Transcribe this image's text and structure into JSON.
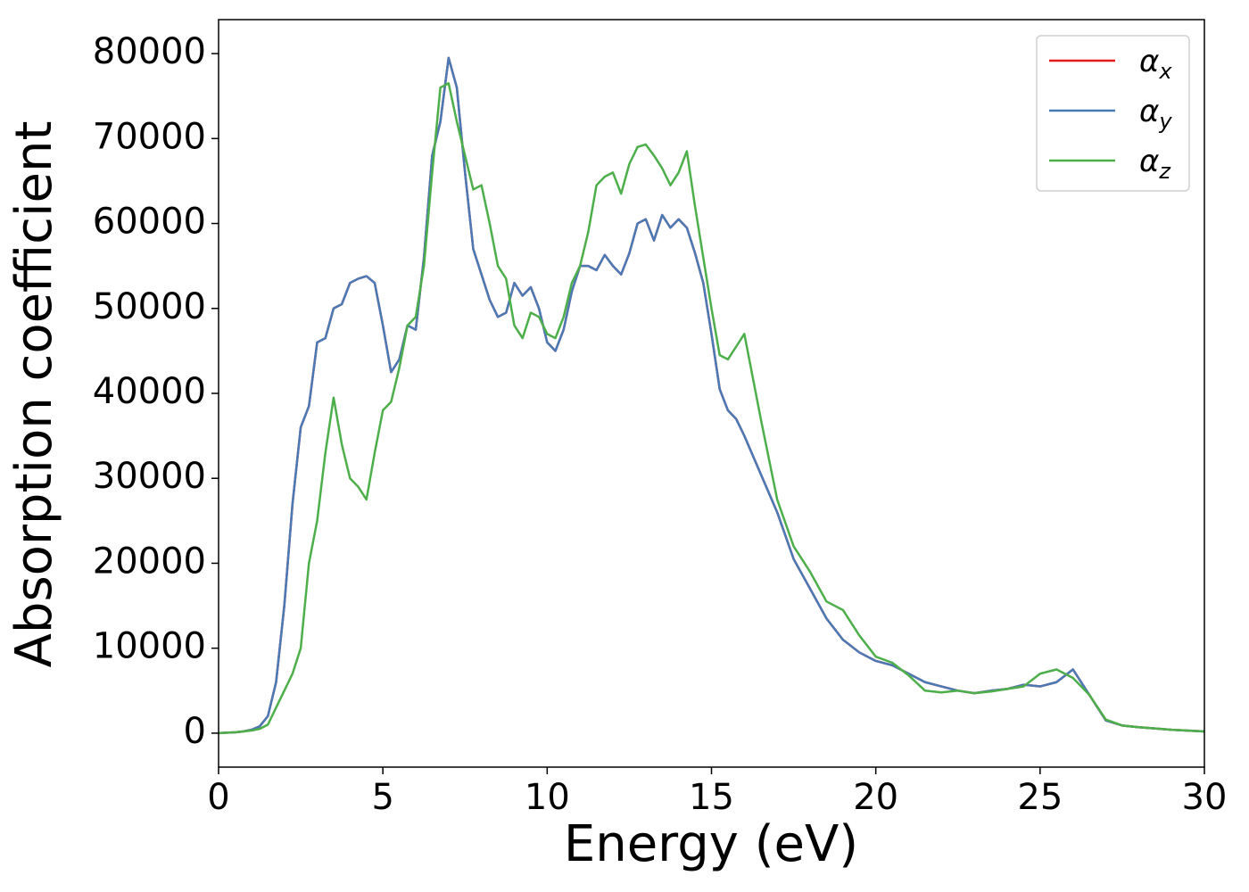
{
  "chart_data": {
    "type": "line",
    "xlabel": "Energy (eV)",
    "ylabel": "Absorption coefficient",
    "xlim": [
      0,
      30
    ],
    "xticks": [
      0,
      5,
      10,
      15,
      20,
      25,
      30
    ],
    "ylim": [
      -4000,
      84000
    ],
    "yticks": [
      0,
      10000,
      20000,
      30000,
      40000,
      50000,
      60000,
      70000,
      80000
    ],
    "legend": "upper right",
    "x": [
      0,
      0.25,
      0.5,
      0.75,
      1,
      1.25,
      1.5,
      1.75,
      2,
      2.25,
      2.5,
      2.75,
      3,
      3.25,
      3.5,
      3.75,
      4,
      4.25,
      4.5,
      4.75,
      5,
      5.25,
      5.5,
      5.75,
      6,
      6.25,
      6.5,
      6.75,
      7,
      7.25,
      7.5,
      7.75,
      8,
      8.25,
      8.5,
      8.75,
      9,
      9.25,
      9.5,
      9.75,
      10,
      10.25,
      10.5,
      10.75,
      11,
      11.25,
      11.5,
      11.75,
      12,
      12.25,
      12.5,
      12.75,
      13,
      13.25,
      13.5,
      13.75,
      14,
      14.25,
      14.5,
      14.75,
      15,
      15.25,
      15.5,
      15.75,
      16,
      16.5,
      17,
      17.5,
      18,
      18.5,
      19,
      19.5,
      20,
      20.5,
      21,
      21.5,
      22,
      22.5,
      23,
      23.5,
      24,
      24.5,
      25,
      25.5,
      26,
      26.5,
      27,
      27.5,
      28,
      29,
      30
    ],
    "series": [
      {
        "name": "αx",
        "color": "#e41a1c",
        "values": [
          0,
          50,
          100,
          200,
          400,
          800,
          2000,
          6000,
          15000,
          27000,
          36000,
          38500,
          46000,
          46500,
          50000,
          50500,
          53000,
          53500,
          53800,
          53000,
          48000,
          42500,
          44000,
          48000,
          47500,
          56000,
          68000,
          72000,
          79500,
          76000,
          66000,
          57000,
          54000,
          51000,
          49000,
          49500,
          53000,
          51500,
          52500,
          50000,
          46000,
          45000,
          47500,
          52000,
          55000,
          55000,
          54500,
          56300,
          55000,
          54000,
          56500,
          60000,
          60500,
          58000,
          61000,
          59500,
          60500,
          59500,
          56500,
          53000,
          47000,
          40500,
          38000,
          37000,
          35000,
          30500,
          26000,
          20500,
          17000,
          13500,
          11000,
          9500,
          8500,
          8000,
          7000,
          6000,
          5500,
          5000,
          4700,
          5000,
          5200,
          5700,
          5500,
          6000,
          7500,
          4500,
          1500,
          900,
          700,
          400,
          200
        ]
      },
      {
        "name": "αy",
        "color": "#4a7ab5",
        "values": [
          0,
          50,
          100,
          200,
          400,
          800,
          2000,
          6000,
          15000,
          27000,
          36000,
          38500,
          46000,
          46500,
          50000,
          50500,
          53000,
          53500,
          53800,
          53000,
          48000,
          42500,
          44000,
          48000,
          47500,
          56000,
          68000,
          72000,
          79500,
          76000,
          66000,
          57000,
          54000,
          51000,
          49000,
          49500,
          53000,
          51500,
          52500,
          50000,
          46000,
          45000,
          47500,
          52000,
          55000,
          55000,
          54500,
          56300,
          55000,
          54000,
          56500,
          60000,
          60500,
          58000,
          61000,
          59500,
          60500,
          59500,
          56500,
          53000,
          47000,
          40500,
          38000,
          37000,
          35000,
          30500,
          26000,
          20500,
          17000,
          13500,
          11000,
          9500,
          8500,
          8000,
          7000,
          6000,
          5500,
          5000,
          4700,
          5000,
          5200,
          5700,
          5500,
          6000,
          7500,
          4500,
          1500,
          900,
          700,
          400,
          200
        ]
      },
      {
        "name": "αz",
        "color": "#4daf4a",
        "values": [
          0,
          50,
          100,
          200,
          300,
          500,
          1000,
          3000,
          5000,
          7000,
          10000,
          20000,
          25000,
          33000,
          39500,
          34000,
          30000,
          29000,
          27500,
          33000,
          38000,
          39000,
          43000,
          48000,
          49000,
          55000,
          66000,
          76000,
          76500,
          72000,
          68000,
          64000,
          64500,
          60000,
          55000,
          53500,
          48000,
          46500,
          49500,
          49000,
          47000,
          46500,
          49000,
          53000,
          55000,
          59000,
          64500,
          65500,
          66000,
          63500,
          67000,
          69000,
          69300,
          68000,
          66500,
          64500,
          66000,
          68500,
          62000,
          56000,
          50000,
          44500,
          44000,
          45500,
          47000,
          37000,
          27500,
          22000,
          19000,
          15500,
          14500,
          11500,
          9000,
          8300,
          6800,
          5000,
          4800,
          5000,
          4700,
          4900,
          5200,
          5500,
          7000,
          7500,
          6500,
          4500,
          1600,
          900,
          700,
          400,
          200
        ]
      }
    ]
  }
}
